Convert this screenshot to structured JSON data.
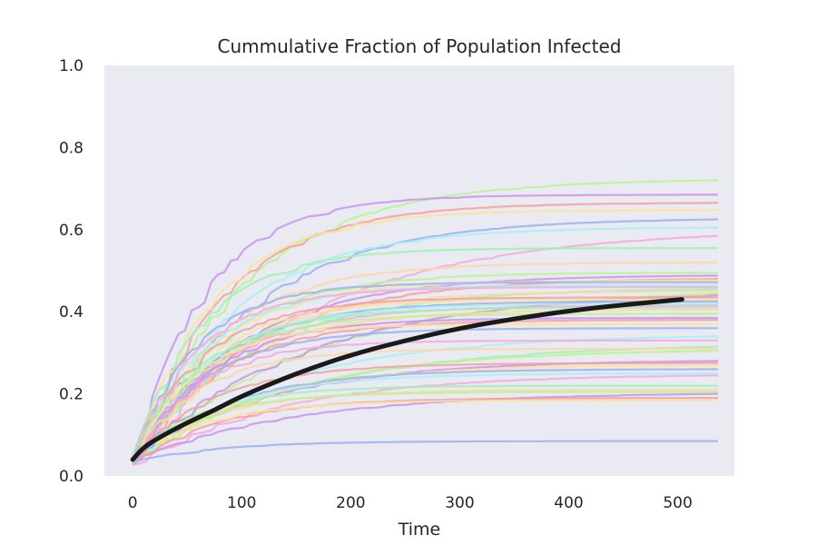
{
  "chart_data": {
    "type": "line",
    "title": "Cummulative Fraction of Population Infected",
    "xlabel": "Time",
    "ylabel": "",
    "xlim": [
      -26,
      552
    ],
    "ylim": [
      0.0,
      1.0
    ],
    "xticks": [
      0,
      100,
      200,
      300,
      400,
      500
    ],
    "xtick_labels": [
      "0",
      "100",
      "200",
      "300",
      "400",
      "500"
    ],
    "yticks": [
      0.0,
      0.2,
      0.4,
      0.6,
      0.8,
      1.0
    ],
    "ytick_labels": [
      "0.0",
      "0.2",
      "0.4",
      "0.6",
      "0.8",
      "1.0"
    ],
    "grid": false,
    "background": "#eaeaf2",
    "simulation_runs": 50,
    "run_x_end": 537,
    "mean_x_end": 504,
    "run_final_values": [
      0.72,
      0.685,
      0.665,
      0.648,
      0.625,
      0.605,
      0.585,
      0.555,
      0.52,
      0.495,
      0.488,
      0.48,
      0.476,
      0.472,
      0.465,
      0.46,
      0.455,
      0.45,
      0.445,
      0.44,
      0.435,
      0.43,
      0.425,
      0.42,
      0.415,
      0.41,
      0.405,
      0.395,
      0.385,
      0.38,
      0.37,
      0.36,
      0.34,
      0.33,
      0.315,
      0.31,
      0.305,
      0.28,
      0.275,
      0.27,
      0.26,
      0.25,
      0.245,
      0.22,
      0.21,
      0.205,
      0.2,
      0.19,
      0.185,
      0.085
    ],
    "palette": [
      "#b7f58f",
      "#c893f0",
      "#f5a0a0",
      "#fbe29a",
      "#9eb0f0",
      "#a6f0f5",
      "#f7a9dc",
      "#9ff2b4",
      "#ffd6a5"
    ],
    "mean_series": {
      "name": "mean",
      "color": "#1a1a1a",
      "x": [
        0,
        10,
        25,
        50,
        75,
        100,
        150,
        200,
        250,
        300,
        350,
        400,
        450,
        504
      ],
      "y": [
        0.04,
        0.07,
        0.095,
        0.13,
        0.16,
        0.195,
        0.25,
        0.295,
        0.33,
        0.36,
        0.383,
        0.402,
        0.417,
        0.43
      ]
    }
  }
}
